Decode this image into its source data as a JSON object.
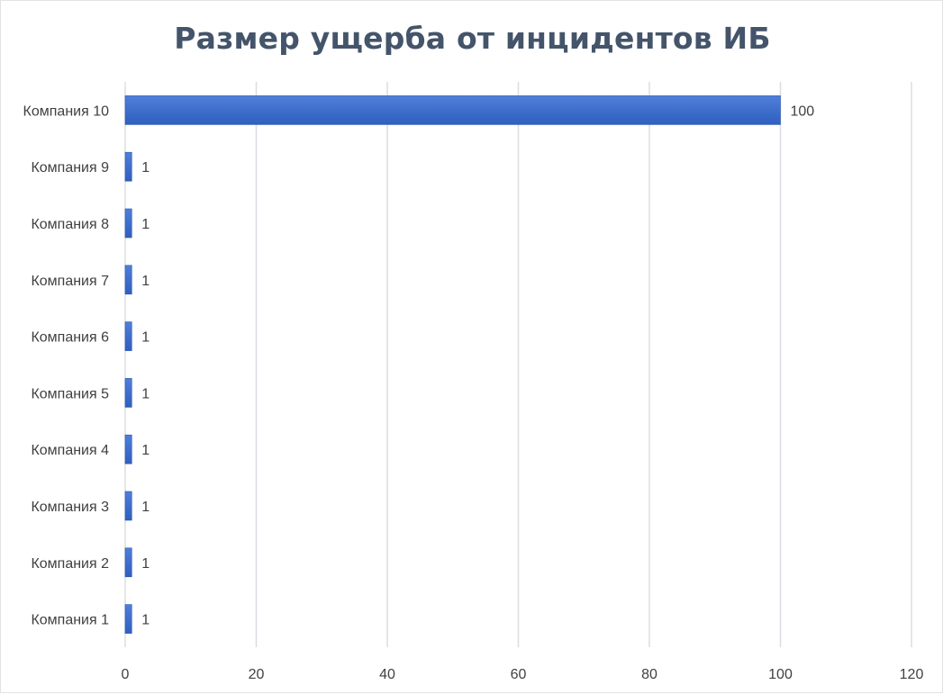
{
  "chart_data": {
    "type": "bar",
    "orientation": "horizontal",
    "title": "Размер ущерба от инцидентов ИБ",
    "categories": [
      "Компания 10",
      "Компания 9",
      "Компания 8",
      "Компания 7",
      "Компания 6",
      "Компания 5",
      "Компания 4",
      "Компания 3",
      "Компания 2",
      "Компания 1"
    ],
    "values": [
      100,
      1,
      1,
      1,
      1,
      1,
      1,
      1,
      1,
      1
    ],
    "data_labels": [
      "100",
      "1",
      "1",
      "1",
      "1",
      "1",
      "1",
      "1",
      "1",
      "1"
    ],
    "x_ticks": [
      "0",
      "20",
      "40",
      "60",
      "80",
      "100",
      "120"
    ],
    "xlim": [
      0,
      120
    ],
    "grid": "vertical",
    "legend": "none",
    "colors": {
      "bar_top": "#4f7fd9",
      "bar_bottom": "#2f5fc0",
      "title": "#44546a",
      "text": "#404040",
      "grid": "#dcdde2"
    }
  }
}
